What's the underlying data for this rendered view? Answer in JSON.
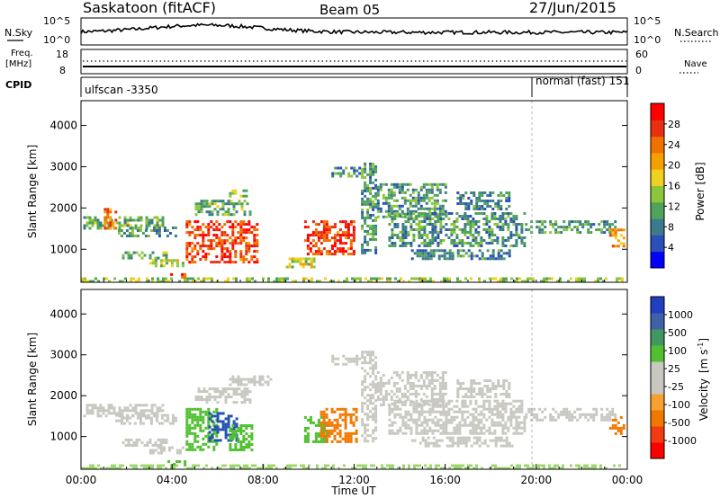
{
  "header": {
    "station": "Saskatoon (fitACF)",
    "beam": "Beam 05",
    "date": "27/Jun/2015"
  },
  "noise_panel": {
    "left_label": "N.Sky",
    "right_label": "N.Search",
    "tick_top": "10^5",
    "tick_bottom": "10^0"
  },
  "freq_panel": {
    "left_label_1": "Freq.",
    "left_label_2": "[MHz]",
    "right_label": "Nave",
    "left_ticks": [
      "18",
      "8"
    ],
    "right_ticks": [
      "60",
      "0"
    ]
  },
  "cpid_panel": {
    "label": "CPID",
    "segments": [
      {
        "start_ut": "00:00",
        "text": "ulfscan -3350"
      },
      {
        "start_ut": "20:00",
        "text": "normal (fast) 151"
      }
    ]
  },
  "chart_data": [
    {
      "type": "heatmap",
      "quantity": "Power",
      "ylabel": "Slant Range [km]",
      "yticks": [
        "1000",
        "2000",
        "3000",
        "4000"
      ],
      "ylim": [
        200,
        4600
      ],
      "xlim_hours": [
        0,
        24
      ],
      "colorbar": {
        "label": "Power [dB]",
        "ticks": [
          "4",
          "8",
          "12",
          "16",
          "20",
          "24",
          "28"
        ],
        "range": [
          0,
          30
        ],
        "colors": [
          "#0000ff",
          "#2b4fb8",
          "#3c7b8c",
          "#4fa35a",
          "#8cc63c",
          "#f0d020",
          "#f5a000",
          "#f07000",
          "#e83010",
          "#ff0000"
        ]
      },
      "features_km": [
        {
          "t0": 0.0,
          "t1": 23.8,
          "r0": 200,
          "r1": 320,
          "level": 0.45
        },
        {
          "t0": 0.1,
          "t1": 3.6,
          "r0": 1500,
          "r1": 1800,
          "level": 0.35
        },
        {
          "t0": 1.0,
          "t1": 1.5,
          "r0": 1500,
          "r1": 2000,
          "level": 0.75
        },
        {
          "t0": 1.5,
          "t1": 4.2,
          "r0": 1350,
          "r1": 1550,
          "level": 0.3
        },
        {
          "t0": 1.8,
          "t1": 3.8,
          "r0": 780,
          "r1": 950,
          "level": 0.35
        },
        {
          "t0": 3.0,
          "t1": 4.5,
          "r0": 600,
          "r1": 760,
          "level": 0.5
        },
        {
          "t0": 3.8,
          "t1": 4.6,
          "r0": 300,
          "r1": 420,
          "level": 0.85
        },
        {
          "t0": 4.6,
          "t1": 7.7,
          "r0": 700,
          "r1": 1700,
          "level": 0.88
        },
        {
          "t0": 5.0,
          "t1": 7.4,
          "r0": 1850,
          "r1": 2200,
          "level": 0.35
        },
        {
          "t0": 6.5,
          "t1": 7.3,
          "r0": 2300,
          "r1": 2450,
          "level": 0.4
        },
        {
          "t0": 9.8,
          "t1": 12.0,
          "r0": 900,
          "r1": 1700,
          "level": 0.88
        },
        {
          "t0": 9.0,
          "t1": 10.2,
          "r0": 600,
          "r1": 800,
          "level": 0.5
        },
        {
          "t0": 11.0,
          "t1": 12.2,
          "r0": 2800,
          "r1": 3000,
          "level": 0.3
        },
        {
          "t0": 12.3,
          "t1": 13.0,
          "r0": 900,
          "r1": 3100,
          "level": 0.3
        },
        {
          "t0": 13.0,
          "t1": 16.0,
          "r0": 1800,
          "r1": 2600,
          "level": 0.3
        },
        {
          "t0": 13.5,
          "t1": 19.5,
          "r0": 1100,
          "r1": 1900,
          "level": 0.28
        },
        {
          "t0": 14.5,
          "t1": 19.0,
          "r0": 750,
          "r1": 1000,
          "level": 0.25
        },
        {
          "t0": 16.5,
          "t1": 18.8,
          "r0": 2000,
          "r1": 2400,
          "level": 0.25
        },
        {
          "t0": 19.5,
          "t1": 23.5,
          "r0": 1400,
          "r1": 1700,
          "level": 0.3
        },
        {
          "t0": 23.2,
          "t1": 23.9,
          "r0": 1050,
          "r1": 1500,
          "level": 0.7
        }
      ]
    },
    {
      "type": "heatmap",
      "quantity": "Velocity",
      "ylabel": "Slant Range [km]",
      "xlabel": "Time UT",
      "xticks": [
        "00:00",
        "04:00",
        "08:00",
        "12:00",
        "16:00",
        "20:00",
        "00:00"
      ],
      "yticks": [
        "1000",
        "2000",
        "3000",
        "4000"
      ],
      "ylim": [
        200,
        4600
      ],
      "xlim_hours": [
        0,
        24
      ],
      "colorbar": {
        "label_main": "Velocity",
        "label_unit": "[m s",
        "label_exp": "-1",
        "label_close": "]",
        "ticks": [
          "-1000",
          "-500",
          "-100",
          "-25",
          "25",
          "100",
          "500",
          "1000"
        ],
        "colors": [
          "#ff0000",
          "#f03c10",
          "#f07800",
          "#f5a030",
          "#c8c8c0",
          "#c8c8c0",
          "#50c030",
          "#409860",
          "#4060a8",
          "#2040c0"
        ]
      },
      "features_km": [
        {
          "t0": 0.0,
          "t1": 23.8,
          "r0": 200,
          "r1": 320,
          "color": "#9fd870"
        },
        {
          "t0": 0.1,
          "t1": 3.6,
          "r0": 1500,
          "r1": 1800,
          "color": "#c8c8c0"
        },
        {
          "t0": 1.5,
          "t1": 4.2,
          "r0": 1350,
          "r1": 1550,
          "color": "#c8c8c0"
        },
        {
          "t0": 1.8,
          "t1": 3.8,
          "r0": 780,
          "r1": 950,
          "color": "#c8c8c0"
        },
        {
          "t0": 3.0,
          "t1": 4.5,
          "r0": 600,
          "r1": 760,
          "color": "#c8c8c0"
        },
        {
          "t0": 3.8,
          "t1": 4.6,
          "r0": 300,
          "r1": 420,
          "color": "#50c030"
        },
        {
          "t0": 4.6,
          "t1": 6.0,
          "r0": 700,
          "r1": 1700,
          "color": "#50c030"
        },
        {
          "t0": 5.6,
          "t1": 6.8,
          "r0": 900,
          "r1": 1600,
          "color": "#2050b0"
        },
        {
          "t0": 6.5,
          "t1": 7.5,
          "r0": 700,
          "r1": 1300,
          "color": "#50c030"
        },
        {
          "t0": 5.0,
          "t1": 7.4,
          "r0": 1850,
          "r1": 2200,
          "color": "#c8c8c0"
        },
        {
          "t0": 6.5,
          "t1": 8.3,
          "r0": 2300,
          "r1": 2500,
          "color": "#c8c8c0"
        },
        {
          "t0": 9.8,
          "t1": 10.8,
          "r0": 900,
          "r1": 1500,
          "color": "#50c030"
        },
        {
          "t0": 10.5,
          "t1": 12.1,
          "r0": 900,
          "r1": 1700,
          "color": "#f07800"
        },
        {
          "t0": 11.0,
          "t1": 12.2,
          "r0": 2800,
          "r1": 3000,
          "color": "#c8c8c0"
        },
        {
          "t0": 12.3,
          "t1": 13.0,
          "r0": 900,
          "r1": 3100,
          "color": "#c8c8c0"
        },
        {
          "t0": 13.0,
          "t1": 16.0,
          "r0": 1800,
          "r1": 2600,
          "color": "#c8c8c0"
        },
        {
          "t0": 13.5,
          "t1": 19.5,
          "r0": 1100,
          "r1": 1900,
          "color": "#c8c8c0"
        },
        {
          "t0": 14.5,
          "t1": 19.0,
          "r0": 750,
          "r1": 1000,
          "color": "#c8c8c0"
        },
        {
          "t0": 16.5,
          "t1": 18.8,
          "r0": 2000,
          "r1": 2400,
          "color": "#c8c8c0"
        },
        {
          "t0": 19.5,
          "t1": 23.5,
          "r0": 1400,
          "r1": 1700,
          "color": "#c8c8c0"
        },
        {
          "t0": 23.2,
          "t1": 23.9,
          "r0": 1050,
          "r1": 1500,
          "color": "#f07800"
        }
      ]
    }
  ]
}
